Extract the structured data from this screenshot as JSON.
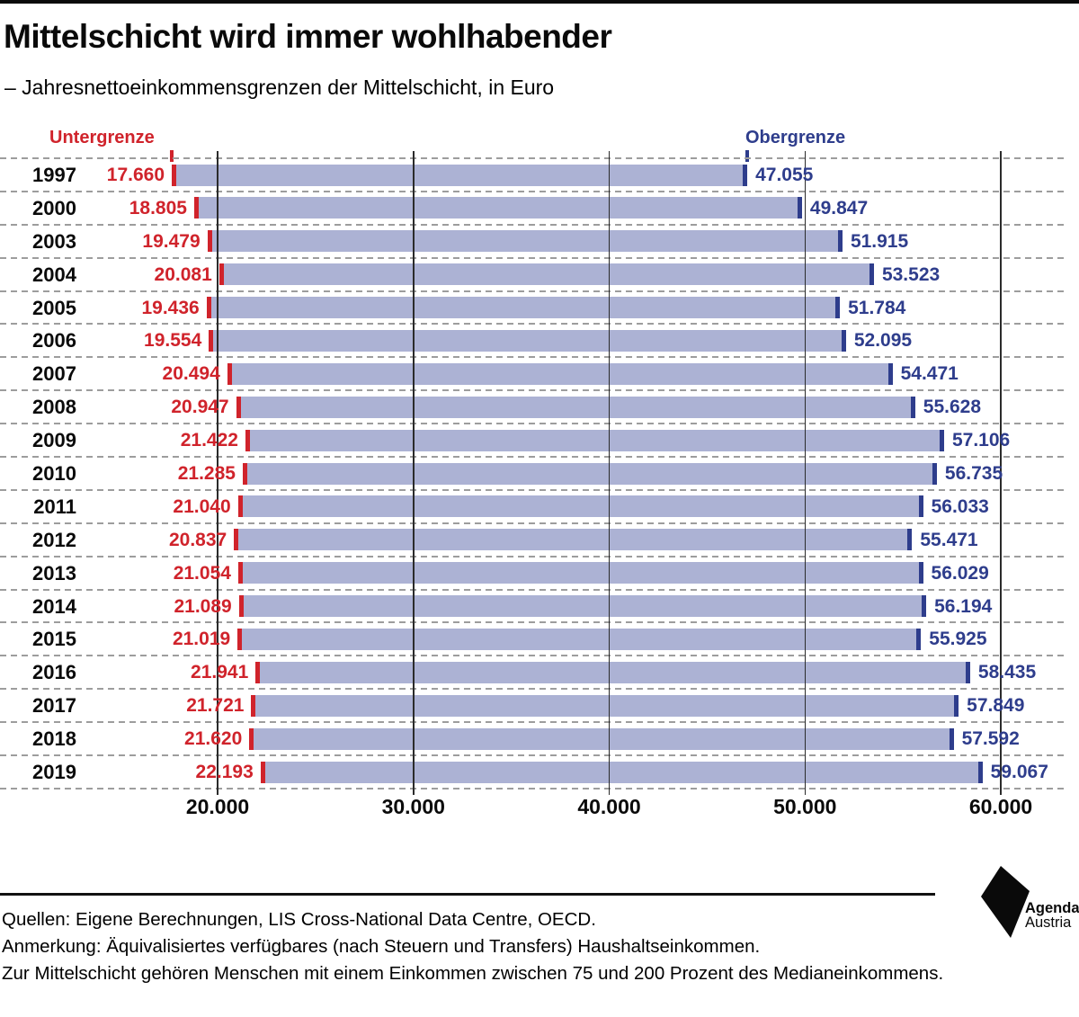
{
  "header": {
    "title": "Mittelschicht wird immer wohlhabender",
    "subtitle": "– Jahresnettoeinkommensgrenzen der Mittelschicht, in Euro"
  },
  "legend": {
    "lower": {
      "label": "Untergrenze",
      "color": "#d0232b"
    },
    "upper": {
      "label": "Obergrenze",
      "color": "#2e3d8c"
    }
  },
  "chart_data": {
    "type": "bar",
    "orientation": "horizontal",
    "title": "Mittelschicht wird immer wohlhabender",
    "subtitle": "Jahresnettoeinkommensgrenzen der Mittelschicht, in Euro",
    "bar_color": "#acb2d4",
    "grid": {
      "horizontal": "dashed",
      "vertical": "solid"
    },
    "categories": [
      "1997",
      "2000",
      "2003",
      "2004",
      "2005",
      "2006",
      "2007",
      "2008",
      "2009",
      "2010",
      "2011",
      "2012",
      "2013",
      "2014",
      "2015",
      "2016",
      "2017",
      "2018",
      "2019"
    ],
    "series": [
      {
        "name": "Untergrenze",
        "color": "#d0232b",
        "values": [
          17660,
          18805,
          19479,
          20081,
          19436,
          19554,
          20494,
          20947,
          21422,
          21285,
          21040,
          20837,
          21054,
          21089,
          21019,
          21941,
          21721,
          21620,
          22193
        ]
      },
      {
        "name": "Obergrenze",
        "color": "#2e3d8c",
        "values": [
          47055,
          49847,
          51915,
          53523,
          51784,
          52095,
          54471,
          55628,
          57106,
          56735,
          56033,
          55471,
          56029,
          56194,
          55925,
          58435,
          57849,
          57592,
          59067
        ]
      }
    ],
    "x_tick_values": [
      20000,
      30000,
      40000,
      50000,
      60000
    ],
    "x_tick_labels": [
      "20.000",
      "30.000",
      "40.000",
      "50.000",
      "60.000"
    ],
    "xlim": [
      20000,
      60000
    ]
  },
  "footer": {
    "lines": [
      "Quellen: Eigene Berechnungen, LIS Cross-National Data Centre, OECD.",
      "Anmerkung: Äquivalisiertes verfügbares (nach Steuern und Transfers) Haushaltseinkommen.",
      "Zur Mittelschicht gehören Menschen mit einem Einkommen zwischen 75 und 200 Prozent des Medianeinkommens."
    ],
    "logo": {
      "line1": "Agenda",
      "line2": "Austria"
    }
  }
}
